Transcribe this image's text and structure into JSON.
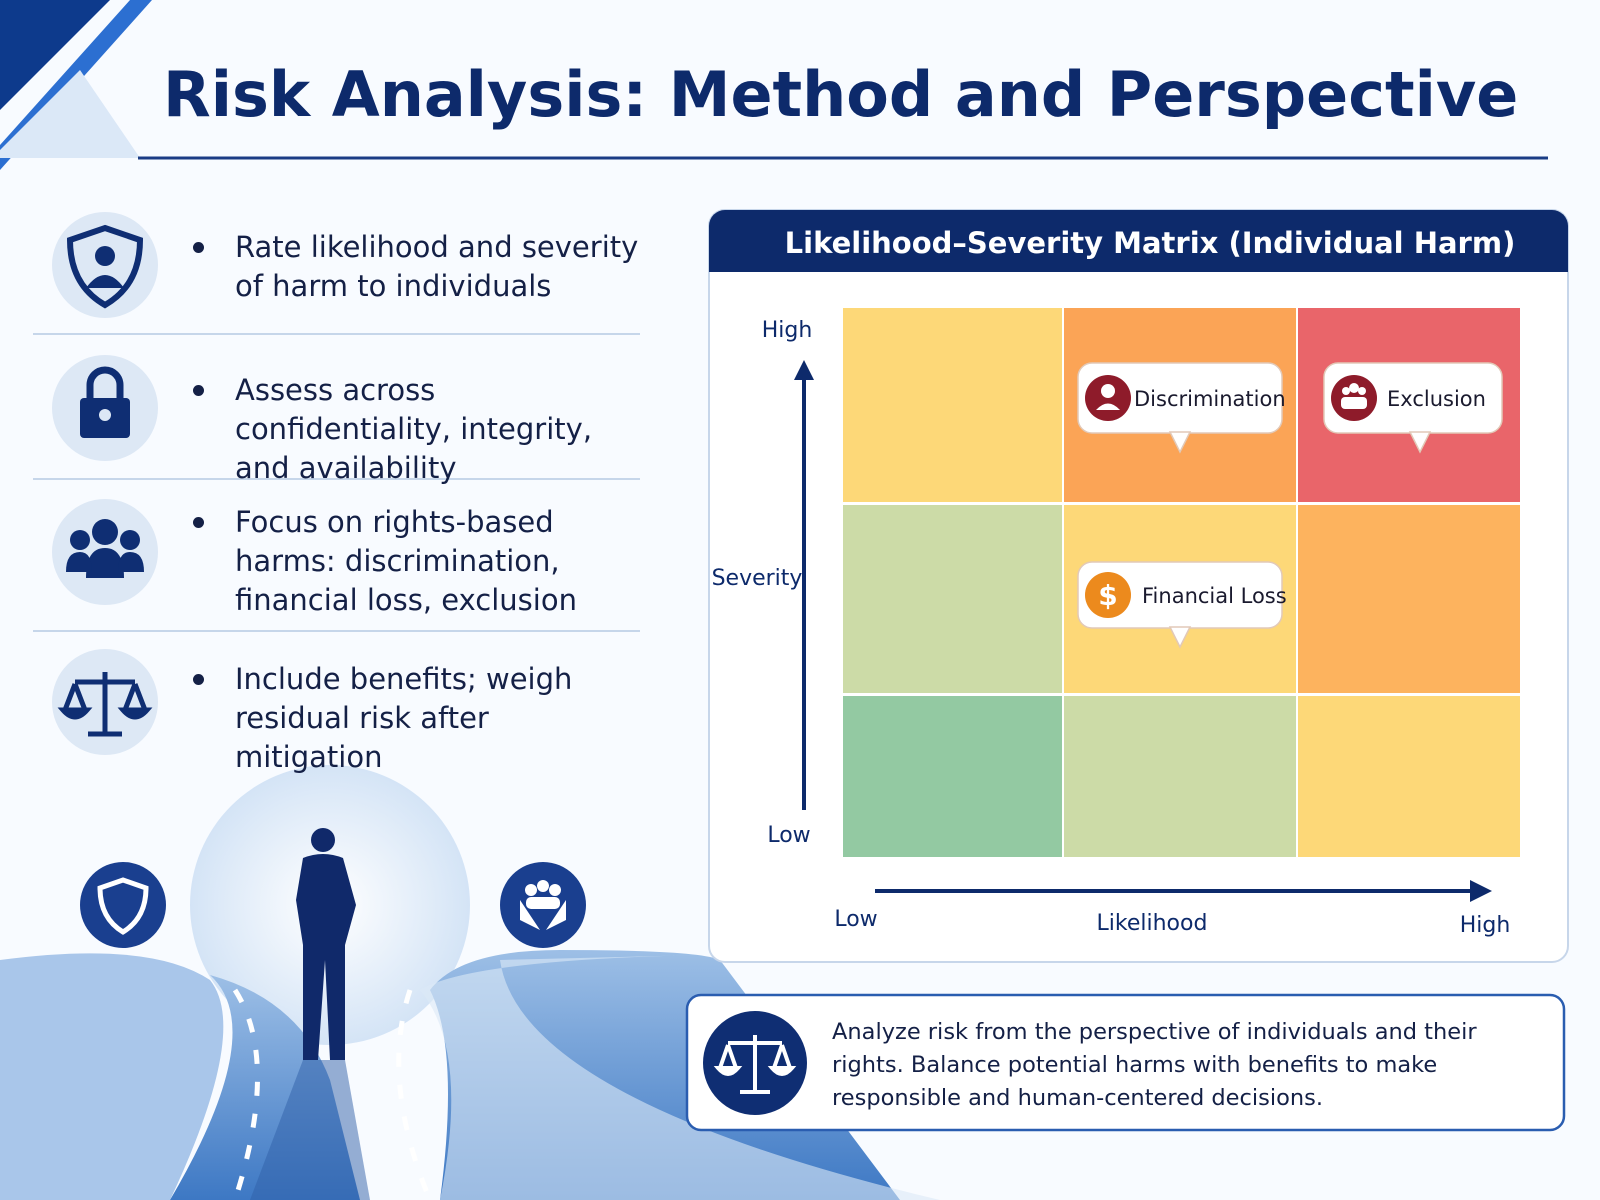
{
  "header": {
    "title": "Risk Analysis: Method and Perspective"
  },
  "bullets": [
    "Rate likelihood and severity of harm to individuals",
    "Assess across confidentiality, integrity, and availability",
    "Focus on rights-based harms: discrimination, financial loss, exclusion",
    "Include benefits; weigh residual risk after mitigation"
  ],
  "matrix": {
    "title": "Likelihood–Severity Matrix (Individual Harm)",
    "y_axis": {
      "label": "Severity",
      "high": "High",
      "low": "Low"
    },
    "x_axis": {
      "label": "Likelihood",
      "low": "Low",
      "high": "High"
    },
    "risks": [
      {
        "label": "Discrimination"
      },
      {
        "label": "Exclusion"
      },
      {
        "label": "Financial Loss"
      }
    ]
  },
  "callout": {
    "text": "Analyze risk from the perspective of individuals and their rights. Balance potential harms with benefits to make responsible and human-centered decisions."
  }
}
